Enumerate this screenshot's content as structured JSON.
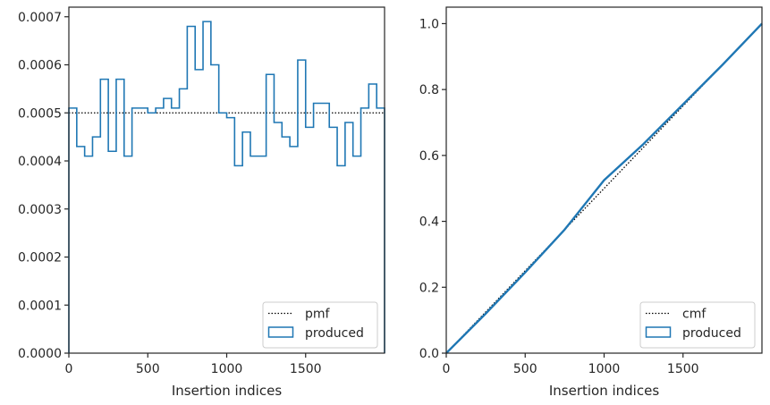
{
  "chart_data": [
    {
      "type": "step-histogram",
      "xlabel": "Insertion indices",
      "ylabel": "",
      "xlim": [
        0,
        2000
      ],
      "ylim": [
        0,
        0.00072
      ],
      "xticks": [
        0,
        500,
        1000,
        1500
      ],
      "xtick_labels": [
        "0",
        "500",
        "1000",
        "1500"
      ],
      "yticks": [
        0,
        0.0001,
        0.0002,
        0.0003,
        0.0004,
        0.0005,
        0.0006,
        0.0007
      ],
      "ytick_labels": [
        "0.0000",
        "0.0001",
        "0.0002",
        "0.0003",
        "0.0004",
        "0.0005",
        "0.0006",
        "0.0007"
      ],
      "legend_position": "lower-right",
      "legend": [
        {
          "label": "pmf",
          "style": "dotted",
          "color": "#000000"
        },
        {
          "label": "produced",
          "style": "step",
          "color": "#1f77b4"
        }
      ],
      "reference_line": {
        "name": "pmf",
        "y": 0.0005
      },
      "bin_width": 50,
      "bin_values": [
        0.00051,
        0.00043,
        0.00041,
        0.00045,
        0.00057,
        0.00042,
        0.00057,
        0.00041,
        0.00051,
        0.00051,
        0.0005,
        0.00051,
        0.00053,
        0.00051,
        0.00055,
        0.00068,
        0.00059,
        0.00069,
        0.0006,
        0.0005,
        0.00049,
        0.00039,
        0.00046,
        0.00041,
        0.00041,
        0.00058,
        0.00048,
        0.00045,
        0.00043,
        0.00061,
        0.00047,
        0.00052,
        0.00052,
        0.00047,
        0.00039,
        0.00048,
        0.00041,
        0.00051,
        0.00056,
        0.00051
      ]
    },
    {
      "type": "line",
      "xlabel": "Insertion indices",
      "ylabel": "",
      "xlim": [
        0,
        2000
      ],
      "ylim": [
        0,
        1.05
      ],
      "xticks": [
        0,
        500,
        1000,
        1500
      ],
      "xtick_labels": [
        "0",
        "500",
        "1000",
        "1500"
      ],
      "yticks": [
        0,
        0.2,
        0.4,
        0.6,
        0.8,
        1.0
      ],
      "ytick_labels": [
        "0.0",
        "0.2",
        "0.4",
        "0.6",
        "0.8",
        "1.0"
      ],
      "legend_position": "lower-right",
      "legend": [
        {
          "label": "cmf",
          "style": "dotted",
          "color": "#000000"
        },
        {
          "label": "produced",
          "style": "step",
          "color": "#1f77b4"
        }
      ],
      "series": [
        {
          "name": "cmf",
          "x": [
            0,
            2000
          ],
          "y": [
            0,
            1.0
          ]
        },
        {
          "name": "produced",
          "x": [
            0,
            250,
            500,
            750,
            1000,
            1250,
            1500,
            1750,
            2000
          ],
          "y": [
            0,
            0.12,
            0.245,
            0.375,
            0.525,
            0.635,
            0.755,
            0.875,
            1.0
          ]
        }
      ]
    }
  ]
}
